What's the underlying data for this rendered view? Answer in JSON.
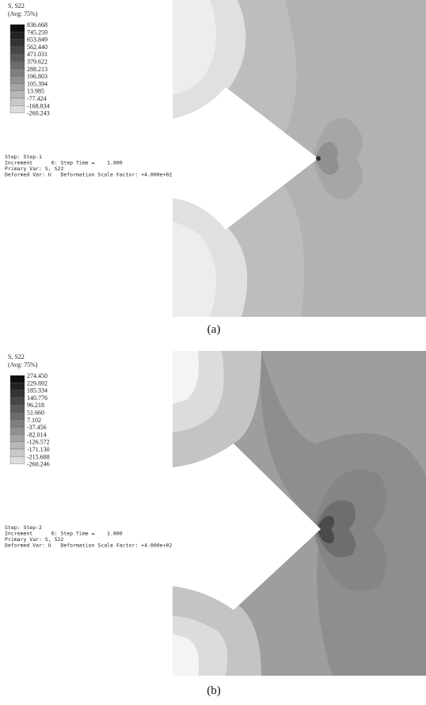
{
  "panels": [
    {
      "legend": {
        "title": "S, S22",
        "subtitle": "(Avg: 75%)",
        "labels": [
          "836.668",
          "745.259",
          "653.849",
          "562.440",
          "471.031",
          "379.622",
          "288.213",
          "196.803",
          "105.394",
          "13.985",
          "-77.424",
          "-168.834",
          "-260.243"
        ]
      },
      "info": [
        "Step: Step-1",
        "Increment      6: Step Time =    1.000",
        "Primary Var: S, S22",
        "Deformed Var: U   Deformation Scale Factor: +4.000e+02"
      ],
      "caption": "(a)"
    },
    {
      "legend": {
        "title": "S, S22",
        "subtitle": "(Avg: 75%)",
        "labels": [
          "274.450",
          "229.892",
          "185.334",
          "140.776",
          "96.218",
          "51.660",
          "7.102",
          "-37.456",
          "-82.014",
          "-126.572",
          "-171.130",
          "-215.688",
          "-260.246"
        ]
      },
      "info": [
        "Step: Step-2",
        "Increment      6: Step Time =    1.000",
        "Primary Var: S, S22",
        "Deformed Var: U   Deformation Scale Factor: +4.000e+02"
      ],
      "caption": "(b)"
    }
  ]
}
